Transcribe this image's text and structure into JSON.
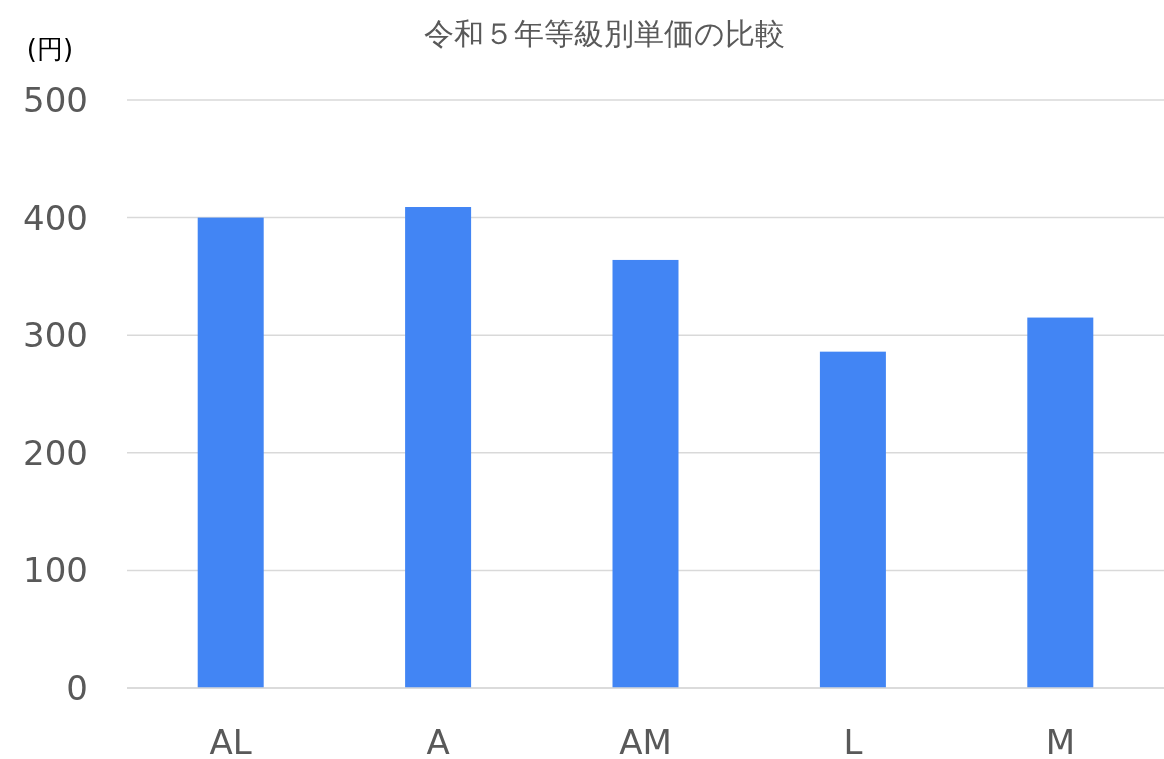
{
  "chart_data": {
    "type": "bar",
    "title": "令和５年等級別単価の比較",
    "ylabel": "(円)",
    "categories": [
      "AL",
      "A",
      "AM",
      "L",
      "M"
    ],
    "values": [
      400,
      409,
      364,
      286,
      315
    ],
    "color": "#4285f4",
    "ylim": [
      0,
      500
    ],
    "yticks": [
      0,
      100,
      200,
      300,
      400,
      500
    ],
    "grid": "y"
  }
}
